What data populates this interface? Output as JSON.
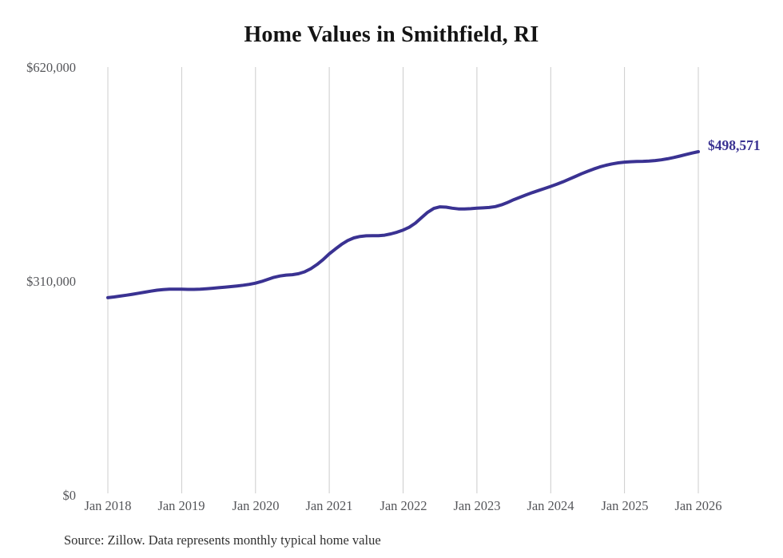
{
  "chart": {
    "title": "Home Values in Smithfield, RI",
    "end_label": "$498,571",
    "source_note": "Source: Zillow. Data represents monthly typical home value"
  },
  "colors": {
    "line": "#3a3292",
    "end_label": "#3a3292",
    "gridline": "#cccccc",
    "tick_text": "#55565a",
    "title_text": "#141414",
    "source_text": "#303030"
  },
  "chart_data": {
    "type": "line",
    "title": "Home Values in Smithfield, RI",
    "xlabel": "",
    "ylabel": "",
    "ylim": [
      0,
      620000
    ],
    "grid": "vertical-only",
    "legend": "none",
    "x_start_month": "Jan 2018",
    "x_end_month": "Jan 2026",
    "x_tick_labels": [
      "Jan 2018",
      "Jan 2019",
      "Jan 2020",
      "Jan 2021",
      "Jan 2022",
      "Jan 2023",
      "Jan 2024",
      "Jan 2025",
      "Jan 2026"
    ],
    "y_ticks": [
      {
        "label": "$620,000",
        "value": 620000
      },
      {
        "label": "$310,000",
        "value": 310000
      },
      {
        "label": "$0",
        "value": 0
      }
    ],
    "annotation": {
      "text": "$498,571",
      "at_month": "Jan 2026",
      "value": 498571
    },
    "series": [
      {
        "name": "Typical home value (monthly)",
        "monthly_values": [
          287000,
          288000,
          289300,
          290600,
          292000,
          293500,
          295000,
          296500,
          297800,
          298800,
          299300,
          299400,
          299200,
          299000,
          299000,
          299300,
          299900,
          300600,
          301400,
          302300,
          303100,
          304000,
          305000,
          306300,
          308000,
          310500,
          313500,
          316500,
          318500,
          319700,
          320300,
          321700,
          324500,
          329000,
          335000,
          342200,
          350500,
          357500,
          364200,
          369800,
          373600,
          375700,
          376600,
          376700,
          376700,
          377500,
          379400,
          381800,
          385000,
          389000,
          395000,
          403000,
          410800,
          416300,
          418600,
          418200,
          416600,
          415600,
          415500,
          416000,
          416600,
          417100,
          417700,
          419000,
          421500,
          425000,
          429000,
          432500,
          436000,
          439200,
          442200,
          445200,
          448200,
          451300,
          454800,
          458700,
          462600,
          466500,
          470100,
          473400,
          476400,
          478900,
          480900,
          482400,
          483400,
          484000,
          484300,
          484600,
          485000,
          485700,
          486800,
          488300,
          490100,
          492200,
          494400,
          496600,
          498571
        ]
      }
    ]
  }
}
